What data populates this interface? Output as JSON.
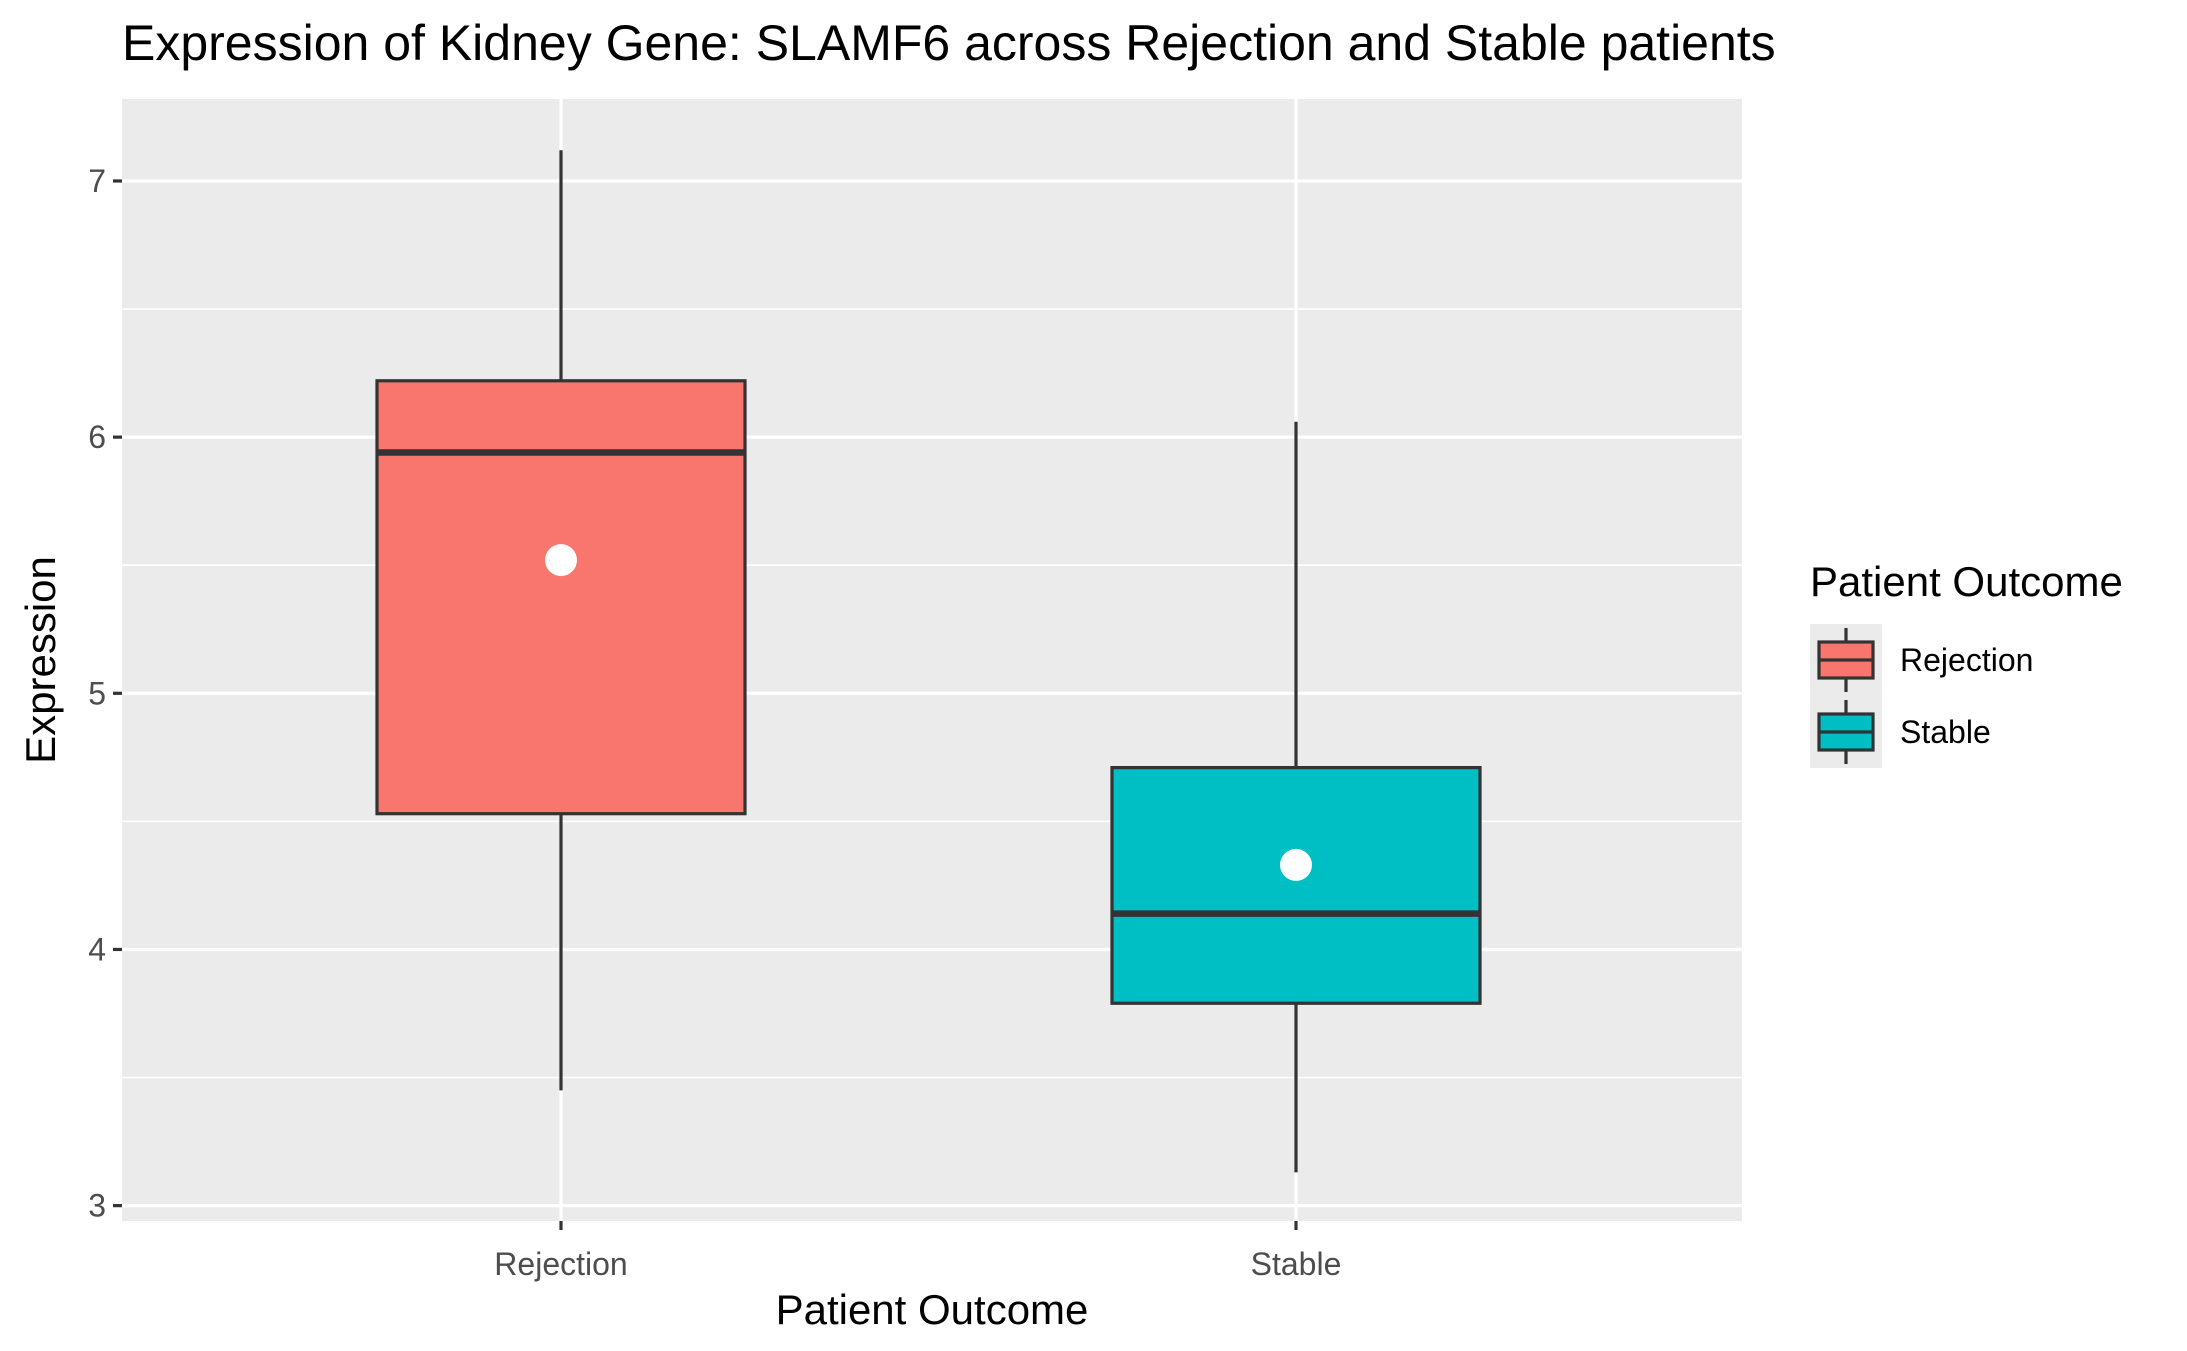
{
  "chart_data": {
    "type": "boxplot",
    "title": "Expression of Kidney Gene: SLAMF6 across Rejection and Stable patients",
    "xlabel": "Patient Outcome",
    "ylabel": "Expression",
    "categories": [
      "Rejection",
      "Stable"
    ],
    "ylim": [
      2.94,
      7.32
    ],
    "yticks": [
      3,
      4,
      5,
      6,
      7
    ],
    "grid": true,
    "legend": {
      "title": "Patient Outcome",
      "position": "right",
      "entries": [
        "Rejection",
        "Stable"
      ]
    },
    "series": [
      {
        "category": "Rejection",
        "min": 3.45,
        "q1": 4.53,
        "median": 5.94,
        "q3": 6.22,
        "max": 7.12,
        "mean": 5.52,
        "fill": "#F8766D"
      },
      {
        "category": "Stable",
        "min": 3.13,
        "q1": 3.79,
        "median": 4.14,
        "q3": 4.71,
        "max": 6.06,
        "mean": 4.33,
        "fill": "#00BFC4"
      }
    ],
    "colors": {
      "panel": "#EBEBEB",
      "gridline": "#FFFFFF",
      "box_outline": "#333333",
      "mean_point": "#FFFFFF"
    }
  }
}
